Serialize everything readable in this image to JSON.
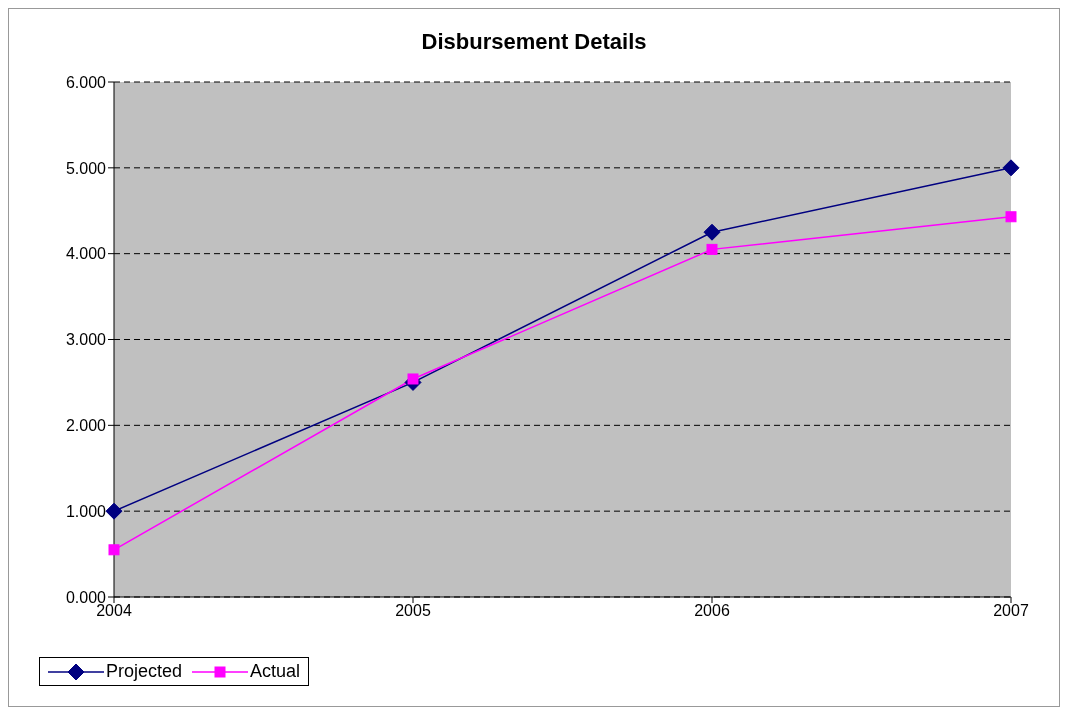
{
  "chart_data": {
    "type": "line",
    "title": "Disbursement Details",
    "categories": [
      "2004",
      "2005",
      "2006",
      "2007"
    ],
    "series": [
      {
        "name": "Projected",
        "color": "#000080",
        "values": [
          1.0,
          2.5,
          4.25,
          5.0
        ],
        "marker": "diamond"
      },
      {
        "name": "Actual",
        "color": "#ff00ff",
        "values": [
          0.55,
          2.54,
          4.05,
          4.43
        ],
        "marker": "square"
      }
    ],
    "ylim": [
      0,
      6
    ],
    "yticks": [
      {
        "value": 0,
        "label": "0.000"
      },
      {
        "value": 1,
        "label": "1.000"
      },
      {
        "value": 2,
        "label": "2.000"
      },
      {
        "value": 3,
        "label": "3.000"
      },
      {
        "value": 4,
        "label": "4.000"
      },
      {
        "value": 5,
        "label": "5.000"
      },
      {
        "value": 6,
        "label": "6.000"
      }
    ],
    "grid": "y",
    "legend": "bottom left",
    "line_style": "solid"
  }
}
